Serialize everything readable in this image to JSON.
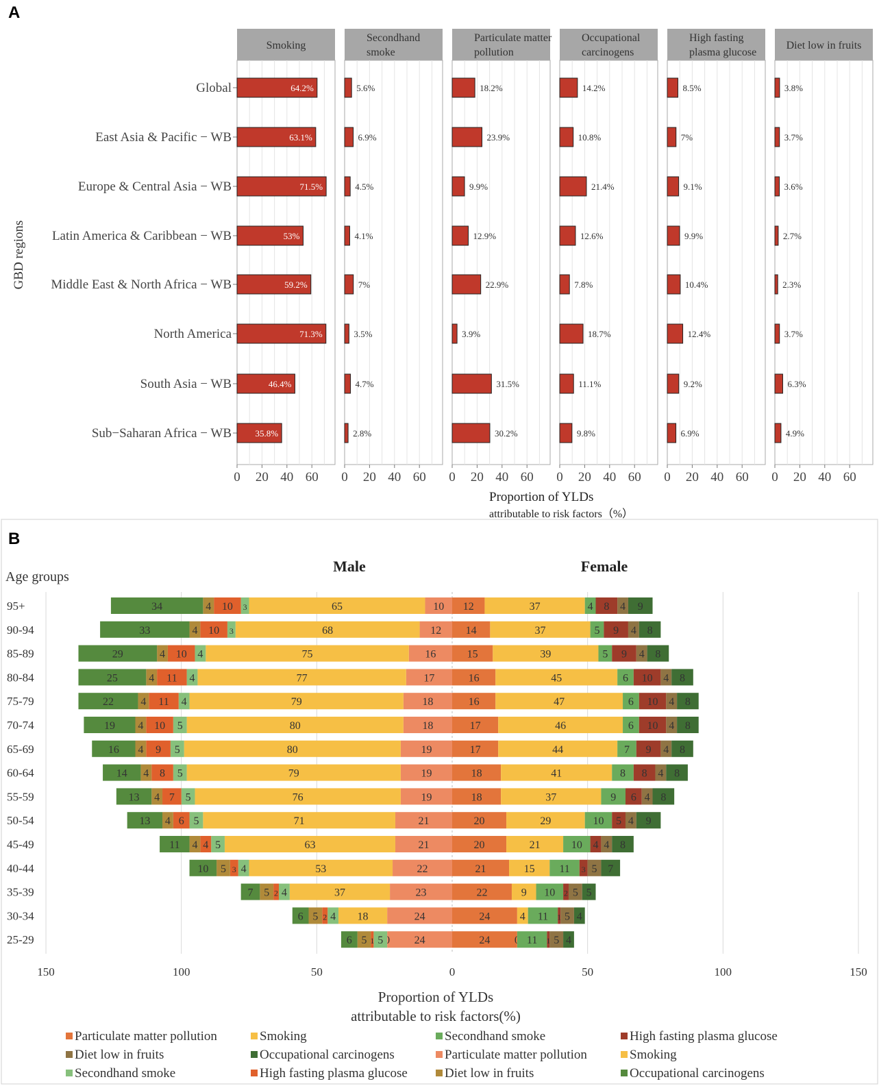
{
  "chart_data": [
    {
      "panel": "A",
      "type": "bar",
      "orientation": "horizontal",
      "facets": [
        "Smoking",
        "Secondhand smoke",
        "Particulate matter pollution",
        "Occupational carcinogens",
        "High fasting plasma glucose",
        "Diet low in fruits"
      ],
      "facet_labels": [
        [
          "Smoking"
        ],
        [
          "Secondhand",
          "smoke"
        ],
        [
          "Particulate matter",
          "pollution"
        ],
        [
          "Occupational",
          "carcinogens"
        ],
        [
          "High fasting",
          "plasma glucose"
        ],
        [
          "Diet low in fruits"
        ]
      ],
      "categories": [
        "Global",
        "East Asia & Pacific − WB",
        "Europe & Central Asia − WB",
        "Latin America & Caribbean − WB",
        "Middle East & North Africa − WB",
        "North America",
        "South Asia − WB",
        "Sub−Saharan Africa − WB"
      ],
      "values": [
        [
          64.2,
          63.1,
          71.5,
          53,
          59.2,
          71.3,
          46.4,
          35.8
        ],
        [
          5.6,
          6.9,
          4.5,
          4.1,
          7,
          3.5,
          4.7,
          2.8
        ],
        [
          18.2,
          23.9,
          9.9,
          12.9,
          22.9,
          3.9,
          31.5,
          30.2
        ],
        [
          14.2,
          10.8,
          21.4,
          12.6,
          7.8,
          18.7,
          11.1,
          9.8
        ],
        [
          8.5,
          7,
          9.1,
          9.9,
          10.4,
          12.4,
          9.2,
          6.9
        ],
        [
          3.8,
          3.7,
          3.6,
          2.7,
          2.3,
          3.7,
          6.3,
          4.9
        ]
      ],
      "labels": [
        [
          "64.2%",
          "63.1%",
          "71.5%",
          "53%",
          "59.2%",
          "71.3%",
          "46.4%",
          "35.8%"
        ],
        [
          "5.6%",
          "6.9%",
          "4.5%",
          "4.1%",
          "7%",
          "3.5%",
          "4.7%",
          "2.8%"
        ],
        [
          "18.2%",
          "23.9%",
          "9.9%",
          "12.9%",
          "22.9%",
          "3.9%",
          "31.5%",
          "30.2%"
        ],
        [
          "14.2%",
          "10.8%",
          "21.4%",
          "12.6%",
          "7.8%",
          "18.7%",
          "11.1%",
          "9.8%"
        ],
        [
          "8.5%",
          "7%",
          "9.1%",
          "9.9%",
          "10.4%",
          "12.4%",
          "9.2%",
          "6.9%"
        ],
        [
          "3.8%",
          "3.7%",
          "3.6%",
          "2.7%",
          "2.3%",
          "3.7%",
          "6.3%",
          "4.9%"
        ]
      ],
      "xlim": [
        0,
        78
      ],
      "xticks": [
        0,
        20,
        40,
        60
      ],
      "ylabel": "GBD regions",
      "xlabel": "Proportion of YLDs",
      "xlabel2": "attributable to risk factors（%）",
      "bar_color": "#c0392b"
    },
    {
      "panel": "B",
      "type": "bar",
      "orientation": "horizontal-stacked-diverging",
      "age_label": "Age groups",
      "male_title": "Male",
      "female_title": "Female",
      "categories": [
        "95+",
        "90-94",
        "85-89",
        "80-84",
        "75-79",
        "70-74",
        "65-69",
        "60-64",
        "55-59",
        "50-54",
        "45-49",
        "40-44",
        "35-39",
        "30-34",
        "25-29"
      ],
      "series_order": [
        "Particulate matter pollution",
        "Smoking",
        "Secondhand smoke",
        "High fasting plasma glucose",
        "Diet low in fruits",
        "Occupational carcinogens"
      ],
      "male": [
        [
          10,
          65,
          3,
          10,
          4,
          34
        ],
        [
          12,
          68,
          3,
          10,
          4,
          33
        ],
        [
          16,
          75,
          4,
          10,
          4,
          29
        ],
        [
          17,
          77,
          4,
          11,
          4,
          25
        ],
        [
          18,
          79,
          4,
          11,
          4,
          22
        ],
        [
          18,
          80,
          5,
          10,
          4,
          19
        ],
        [
          19,
          80,
          5,
          9,
          4,
          16
        ],
        [
          19,
          79,
          5,
          8,
          4,
          14
        ],
        [
          19,
          76,
          5,
          7,
          4,
          13
        ],
        [
          21,
          71,
          5,
          6,
          4,
          13
        ],
        [
          21,
          63,
          5,
          4,
          4,
          11
        ],
        [
          22,
          53,
          4,
          3,
          5,
          10
        ],
        [
          23,
          37,
          4,
          2,
          5,
          7
        ],
        [
          24,
          18,
          4,
          2,
          5,
          6
        ],
        [
          24,
          0,
          5,
          1,
          5,
          6
        ]
      ],
      "female": [
        [
          12,
          37,
          4,
          8,
          4,
          9
        ],
        [
          14,
          37,
          5,
          9,
          4,
          8
        ],
        [
          15,
          39,
          5,
          9,
          4,
          8
        ],
        [
          16,
          45,
          6,
          10,
          4,
          8
        ],
        [
          16,
          47,
          6,
          10,
          4,
          8
        ],
        [
          17,
          46,
          6,
          10,
          4,
          8
        ],
        [
          17,
          44,
          7,
          9,
          4,
          8
        ],
        [
          18,
          41,
          8,
          8,
          4,
          8
        ],
        [
          18,
          37,
          9,
          6,
          4,
          8
        ],
        [
          20,
          29,
          10,
          5,
          4,
          9
        ],
        [
          20,
          21,
          10,
          4,
          4,
          8
        ],
        [
          21,
          15,
          11,
          3,
          5,
          7
        ],
        [
          22,
          9,
          10,
          2,
          5,
          5
        ],
        [
          24,
          4,
          11,
          1,
          5,
          4
        ],
        [
          24,
          0,
          11,
          1,
          5,
          4
        ]
      ],
      "male_colors": [
        "#ed8a62",
        "#f6bf45",
        "#87c07c",
        "#e0602c",
        "#b08a3a",
        "#558a3e"
      ],
      "female_colors": [
        "#e3753b",
        "#f6bf45",
        "#6aab5c",
        "#9e3c2a",
        "#8f7444",
        "#3f6e34"
      ],
      "xlim": [
        -150,
        150
      ],
      "xticks": [
        -150,
        -100,
        -50,
        0,
        50,
        100,
        150
      ],
      "xtick_labels": [
        "150",
        "100",
        "50",
        "0",
        "50",
        "100",
        "150"
      ],
      "xlabel": "Proportion of YLDs",
      "xlabel2": "attributable to risk factors(%)",
      "legend": [
        {
          "label": "Particulate matter pollution",
          "color": "#e3753b"
        },
        {
          "label": "Smoking",
          "color": "#f6bf45"
        },
        {
          "label": "Secondhand smoke",
          "color": "#6aab5c"
        },
        {
          "label": "High fasting plasma glucose",
          "color": "#9e3c2a"
        },
        {
          "label": "Diet low in fruits",
          "color": "#8f7444"
        },
        {
          "label": "Occupational carcinogens",
          "color": "#3f6e34"
        },
        {
          "label": "Particulate matter pollution",
          "color": "#ed8a62"
        },
        {
          "label": "Smoking",
          "color": "#f6bf45"
        },
        {
          "label": "Secondhand smoke",
          "color": "#87c07c"
        },
        {
          "label": "High fasting plasma glucose",
          "color": "#e0602c"
        },
        {
          "label": "Diet low in fruits",
          "color": "#b08a3a"
        },
        {
          "label": "Occupational carcinogens",
          "color": "#558a3e"
        }
      ]
    }
  ],
  "panel_letters": {
    "a": "A",
    "b": "B"
  }
}
